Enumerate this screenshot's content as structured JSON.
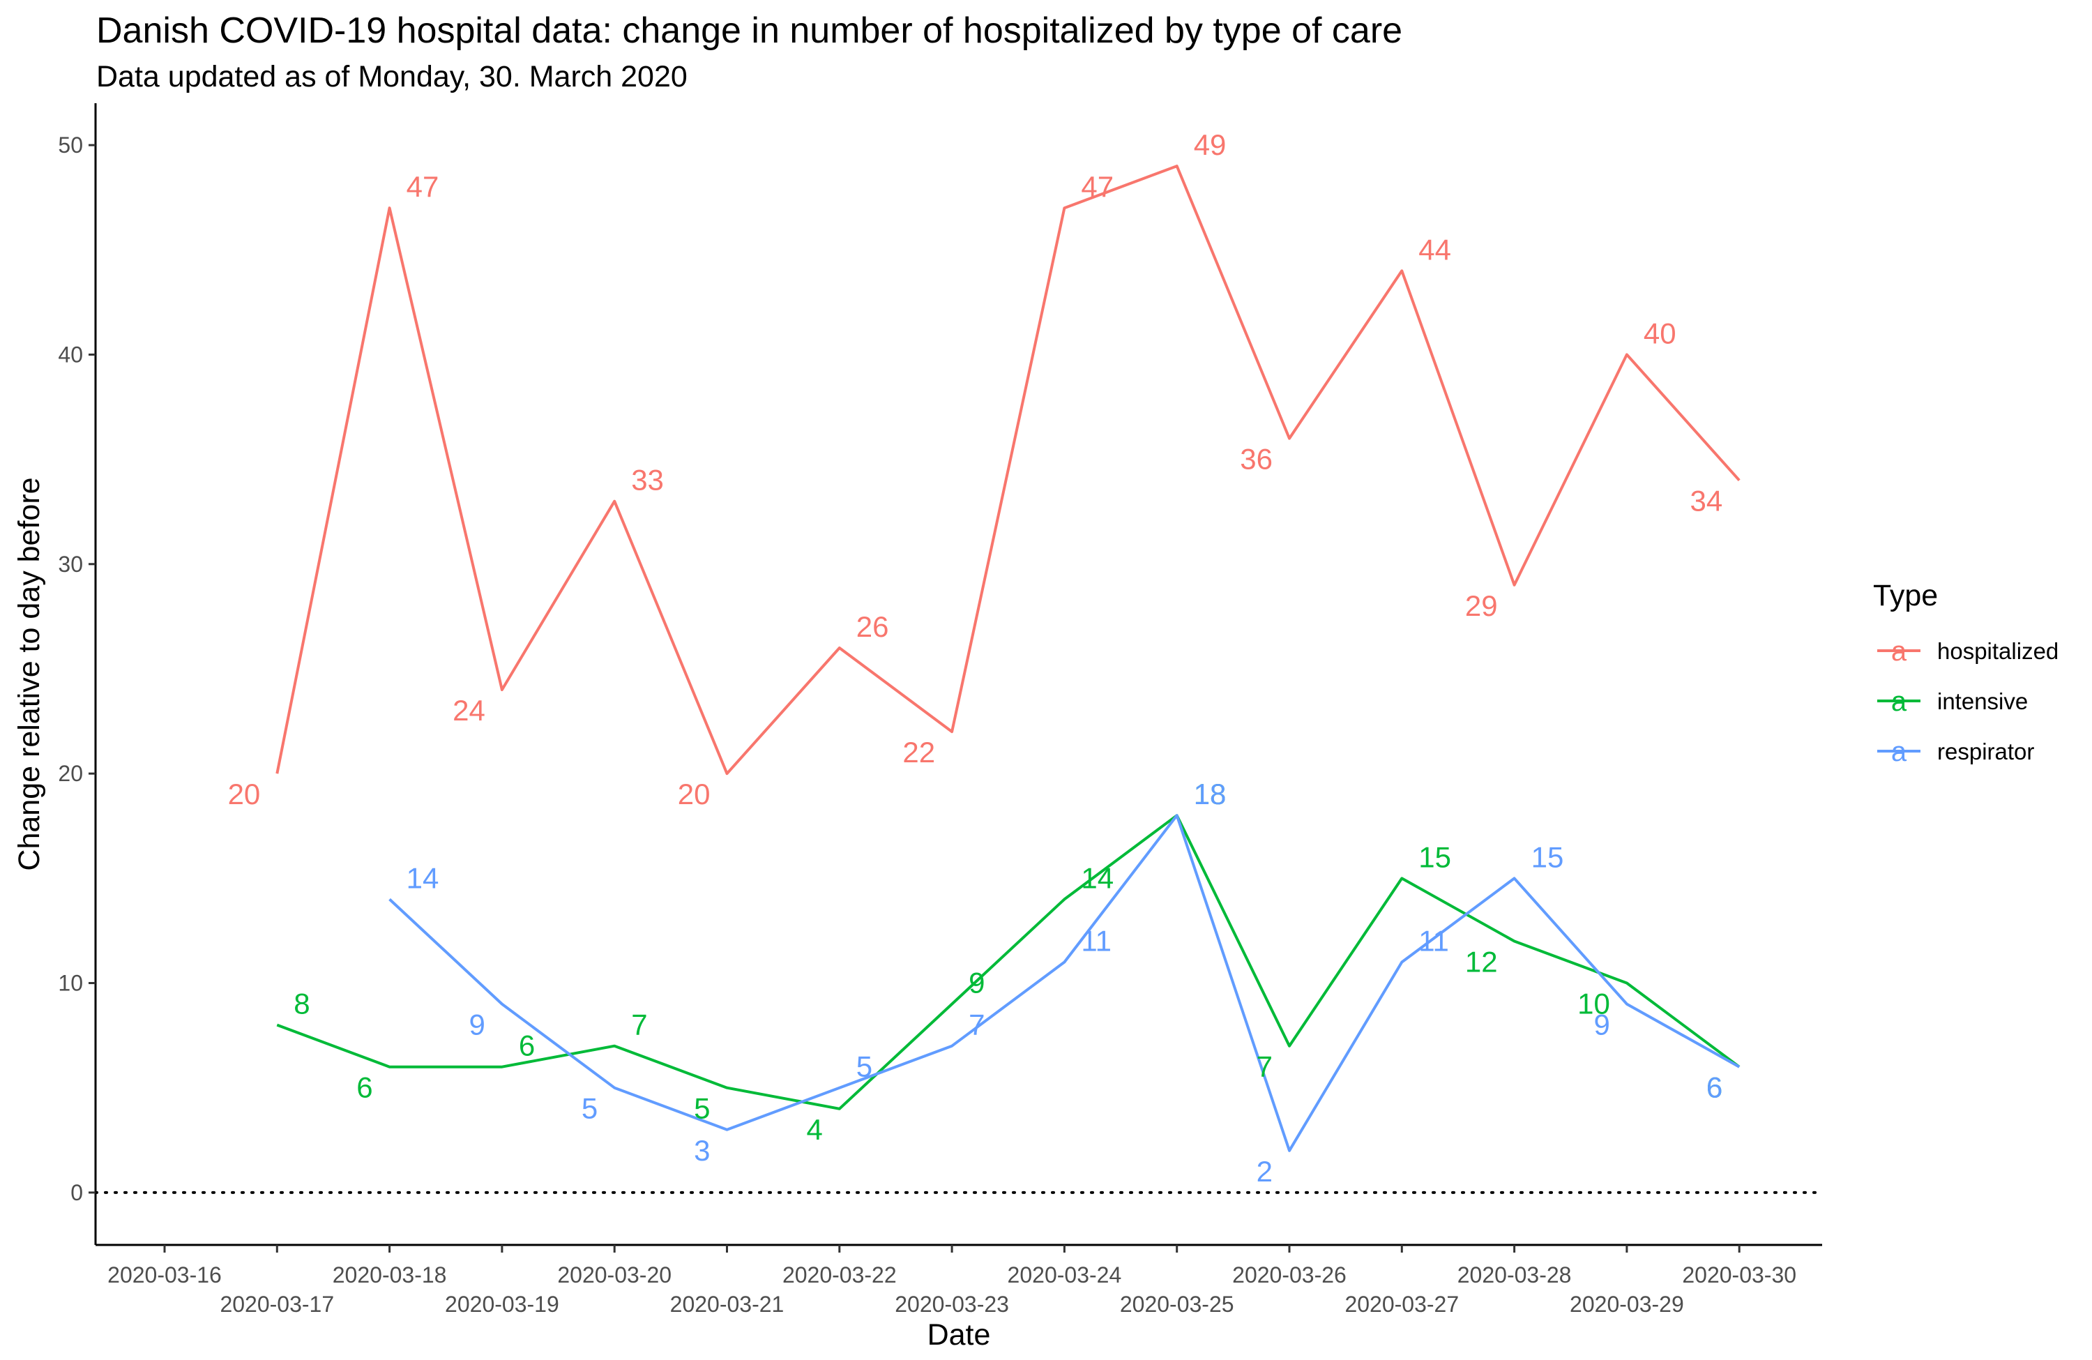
{
  "chart_data": {
    "type": "line",
    "title": "Danish COVID-19 hospital data: change in number of hospitalized by type of care",
    "subtitle": "Data updated as of Monday, 30. March 2020",
    "xlabel": "Date",
    "ylabel": "Change relative to day before",
    "x_ticks": [
      "2020-03-16",
      "2020-03-17",
      "2020-03-18",
      "2020-03-19",
      "2020-03-20",
      "2020-03-21",
      "2020-03-22",
      "2020-03-23",
      "2020-03-24",
      "2020-03-25",
      "2020-03-26",
      "2020-03-27",
      "2020-03-28",
      "2020-03-29",
      "2020-03-30"
    ],
    "xlim": [
      "2020-03-16",
      "2020-03-30"
    ],
    "y_ticks": [
      0,
      10,
      20,
      30,
      40,
      50
    ],
    "ylim": [
      -2.5,
      52
    ],
    "reference_line": {
      "y": 0,
      "style": "dotted"
    },
    "grid": false,
    "legend": {
      "title": "Type",
      "position": "right",
      "key_glyph": "a"
    },
    "series": [
      {
        "name": "hospitalized",
        "color": "#F8766D",
        "points": [
          {
            "x": "2020-03-17",
            "y": 20
          },
          {
            "x": "2020-03-18",
            "y": 47
          },
          {
            "x": "2020-03-19",
            "y": 24
          },
          {
            "x": "2020-03-20",
            "y": 33
          },
          {
            "x": "2020-03-21",
            "y": 20
          },
          {
            "x": "2020-03-22",
            "y": 26
          },
          {
            "x": "2020-03-23",
            "y": 22
          },
          {
            "x": "2020-03-24",
            "y": 47
          },
          {
            "x": "2020-03-25",
            "y": 49
          },
          {
            "x": "2020-03-26",
            "y": 36
          },
          {
            "x": "2020-03-27",
            "y": 44
          },
          {
            "x": "2020-03-28",
            "y": 29
          },
          {
            "x": "2020-03-29",
            "y": 40
          },
          {
            "x": "2020-03-30",
            "y": 34
          }
        ]
      },
      {
        "name": "intensive",
        "color": "#00BA38",
        "points": [
          {
            "x": "2020-03-17",
            "y": 8
          },
          {
            "x": "2020-03-18",
            "y": 6
          },
          {
            "x": "2020-03-19",
            "y": 6
          },
          {
            "x": "2020-03-20",
            "y": 7
          },
          {
            "x": "2020-03-21",
            "y": 5
          },
          {
            "x": "2020-03-22",
            "y": 4
          },
          {
            "x": "2020-03-23",
            "y": 9
          },
          {
            "x": "2020-03-24",
            "y": 14
          },
          {
            "x": "2020-03-25",
            "y": 18
          },
          {
            "x": "2020-03-26",
            "y": 7
          },
          {
            "x": "2020-03-27",
            "y": 15
          },
          {
            "x": "2020-03-28",
            "y": 12
          },
          {
            "x": "2020-03-29",
            "y": 10
          },
          {
            "x": "2020-03-30",
            "y": 6
          }
        ]
      },
      {
        "name": "respirator",
        "color": "#619CFF",
        "points": [
          {
            "x": "2020-03-18",
            "y": 14
          },
          {
            "x": "2020-03-19",
            "y": 9
          },
          {
            "x": "2020-03-20",
            "y": 5
          },
          {
            "x": "2020-03-21",
            "y": 3
          },
          {
            "x": "2020-03-22",
            "y": 5
          },
          {
            "x": "2020-03-23",
            "y": 7
          },
          {
            "x": "2020-03-24",
            "y": 11
          },
          {
            "x": "2020-03-25",
            "y": 18
          },
          {
            "x": "2020-03-26",
            "y": 2
          },
          {
            "x": "2020-03-27",
            "y": 11
          },
          {
            "x": "2020-03-28",
            "y": 15
          },
          {
            "x": "2020-03-29",
            "y": 9
          },
          {
            "x": "2020-03-30",
            "y": 6
          }
        ]
      }
    ]
  }
}
